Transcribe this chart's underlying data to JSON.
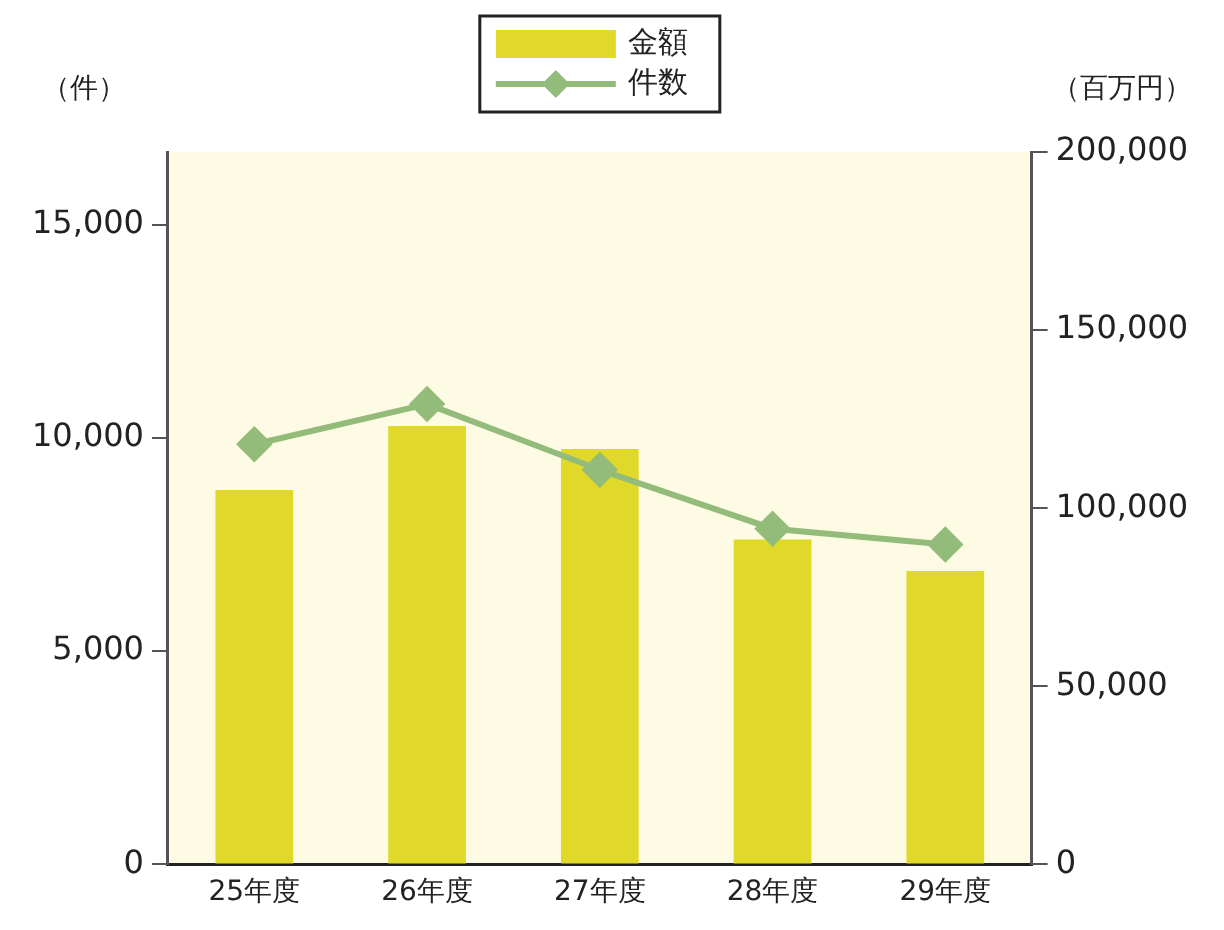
{
  "chart_data": {
    "type": "bar",
    "ylabel": "（件）",
    "y2label": "（百万円）",
    "categories": [
      "25年度",
      "26年度",
      "27年度",
      "28年度",
      "29年度"
    ],
    "series": [
      {
        "name": "金額",
        "axis": "y2",
        "color": "#e0d92a",
        "values": [
          105100,
          123100,
          116600,
          91200,
          82400
        ]
      },
      {
        "name": "件数",
        "type": "line",
        "axis": "y",
        "color": "#93bb7a",
        "marker": "diamond",
        "values": [
          9850,
          10790,
          9250,
          7870,
          7500
        ]
      }
    ],
    "ylim": [
      0,
      16700
    ],
    "yticks": [
      {
        "value": 0,
        "label": "0"
      },
      {
        "value": 5000,
        "label": "5,000"
      },
      {
        "value": 10000,
        "label": "10,000"
      },
      {
        "value": 15000,
        "label": "15,000"
      }
    ],
    "y2lim": [
      0,
      200000
    ],
    "y2ticks": [
      {
        "value": 0,
        "label": "0"
      },
      {
        "value": 50000,
        "label": "50,000"
      },
      {
        "value": 100000,
        "label": "100,000"
      },
      {
        "value": 150000,
        "label": "150,000"
      },
      {
        "value": 200000,
        "label": "200,000"
      }
    ],
    "grid": false,
    "legend": "top"
  }
}
